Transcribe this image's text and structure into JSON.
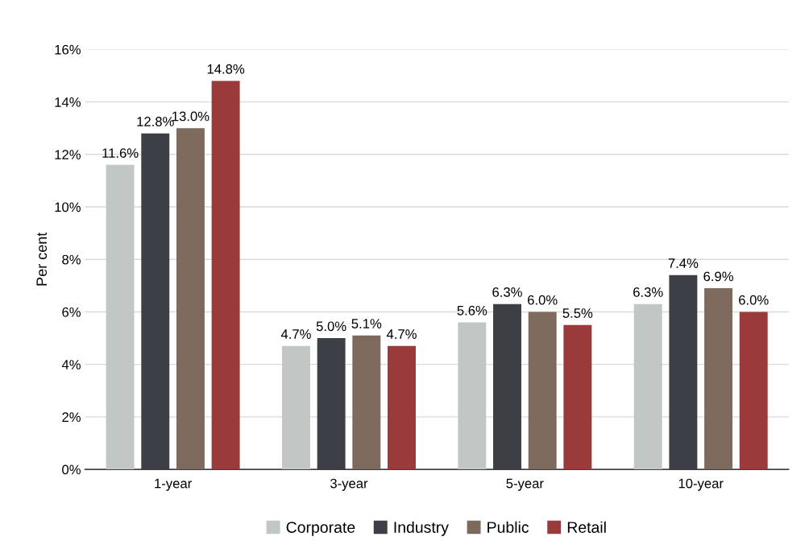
{
  "chart_data": {
    "type": "bar",
    "ylabel": "Per cent",
    "categories": [
      "1-year",
      "3-year",
      "5-year",
      "10-year"
    ],
    "series": [
      {
        "name": "Corporate",
        "color": "#c0c7c5",
        "values": [
          11.6,
          4.7,
          5.6,
          6.3
        ],
        "value_labels": [
          "11.6%",
          "4.7%",
          "5.6%",
          "6.3%"
        ]
      },
      {
        "name": "Industry",
        "color": "#3d3f47",
        "values": [
          12.8,
          5.0,
          6.3,
          7.4
        ],
        "value_labels": [
          "12.8%",
          "5.0%",
          "6.3%",
          "7.4%"
        ]
      },
      {
        "name": "Public",
        "color": "#7d6a5c",
        "values": [
          13.0,
          5.1,
          6.0,
          6.9
        ],
        "value_labels": [
          "13.0%",
          "5.1%",
          "6.0%",
          "6.9%"
        ]
      },
      {
        "name": "Retail",
        "color": "#9b3a3a",
        "values": [
          14.8,
          4.7,
          5.5,
          6.0
        ],
        "value_labels": [
          "14.8%",
          "4.7%",
          "5.5%",
          "6.0%"
        ]
      }
    ],
    "ylim": [
      0,
      16
    ],
    "yticks": [
      {
        "value": 0,
        "label": "0%"
      },
      {
        "value": 2,
        "label": "2%"
      },
      {
        "value": 4,
        "label": "4%"
      },
      {
        "value": 6,
        "label": "6%"
      },
      {
        "value": 8,
        "label": "8%"
      },
      {
        "value": 10,
        "label": "10%"
      },
      {
        "value": 12,
        "label": "12%"
      },
      {
        "value": 14,
        "label": "14%"
      },
      {
        "value": 16,
        "label": "16%"
      }
    ],
    "grid": "y",
    "legend": "bottom"
  }
}
